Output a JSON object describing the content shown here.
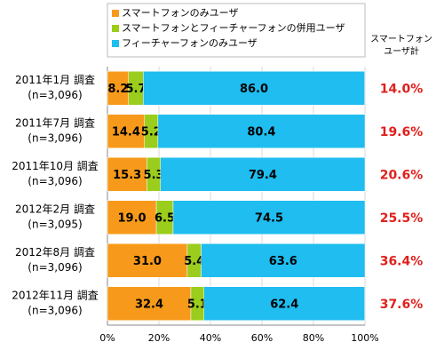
{
  "chart_data": {
    "type": "stacked-bar-horizontal",
    "categories": [
      "2011年1月 調査",
      "2011年7月 調査",
      "2011年10月 調査",
      "2012年2月 調査",
      "2012年8月 調査",
      "2012年11月 調査"
    ],
    "sample_sizes": [
      "(n=3,096)",
      "(n=3,096)",
      "(n=3,096)",
      "(n=3,095)",
      "(n=3,096)",
      "(n=3,096)"
    ],
    "series": [
      {
        "name": "スマートフォンのみユーザ",
        "color": "#f79a1b",
        "values": [
          8.2,
          14.4,
          15.3,
          19.0,
          31.0,
          32.4
        ],
        "value_labels": [
          "8.2",
          "14.4",
          "15.3",
          "19.0",
          "31.0",
          "32.4"
        ]
      },
      {
        "name": "スマートフォンとフィーチャーフォンの併用ユーザ",
        "color": "#9acd1c",
        "values": [
          5.7,
          5.2,
          5.3,
          6.5,
          5.4,
          5.1
        ],
        "value_labels": [
          "5.7",
          "5.2",
          "5.3",
          "6.5",
          "5.4",
          "5.1"
        ]
      },
      {
        "name": "フィーチャーフォンのみユーザ",
        "color": "#1fbdf0",
        "values": [
          86.0,
          80.4,
          79.4,
          74.5,
          63.6,
          62.4
        ],
        "value_labels": [
          "86.0",
          "80.4",
          "79.4",
          "74.5",
          "63.6",
          "62.4"
        ]
      }
    ],
    "totals": {
      "title_lines": [
        "スマートフォン",
        "ユーザ計"
      ],
      "color": "#e0201c",
      "values": [
        14.0,
        19.6,
        20.6,
        25.5,
        36.4,
        37.6
      ],
      "value_labels": [
        "14.0%",
        "19.6%",
        "20.6%",
        "25.5%",
        "36.4%",
        "37.6%"
      ]
    },
    "xlim": [
      0,
      100
    ],
    "xticks": [
      {
        "value": 0,
        "label": "0%"
      },
      {
        "value": 20,
        "label": "20%"
      },
      {
        "value": 40,
        "label": "40%"
      },
      {
        "value": 60,
        "label": "60%"
      },
      {
        "value": 80,
        "label": "80%"
      },
      {
        "value": 100,
        "label": "100%"
      }
    ],
    "grid": true
  }
}
